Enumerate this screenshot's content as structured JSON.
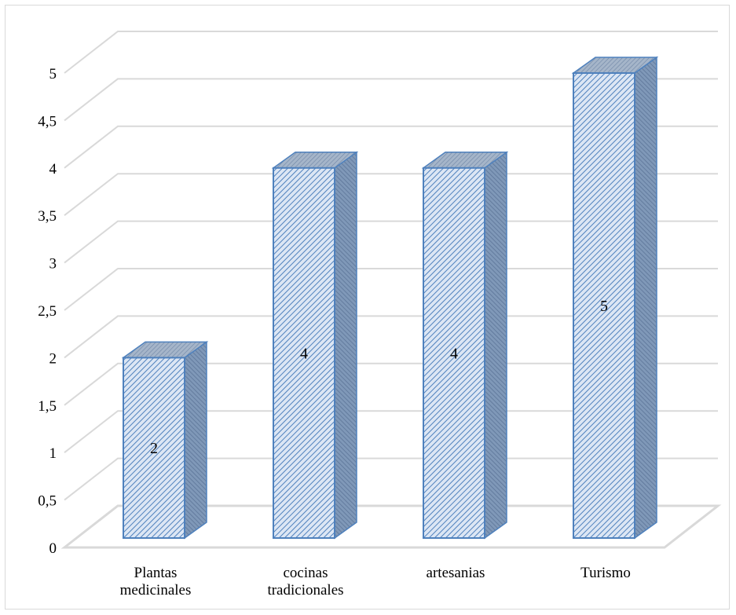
{
  "chart_data": {
    "type": "bar",
    "style": "3d-column",
    "categories": [
      [
        "Plantas",
        "medicinales"
      ],
      [
        "cocinas",
        "tradicionales"
      ],
      [
        "artesanias"
      ],
      [
        "Turismo"
      ]
    ],
    "values": [
      2,
      4,
      4,
      5
    ],
    "data_labels": [
      "2",
      "4",
      "4",
      "5"
    ],
    "y_ticks": [
      "0",
      "0,5",
      "1",
      "1,5",
      "2",
      "2,5",
      "3",
      "3,5",
      "4",
      "4,5",
      "5"
    ],
    "ylim": [
      0,
      5
    ],
    "y_tick_step": 0.5,
    "grid": true,
    "legend": "none",
    "title": "",
    "xlabel": "",
    "ylabel": "",
    "colors": {
      "bar_front": "#dce6f4",
      "bar_hatch": "#4f81bd",
      "bar_side": "#7f98b8",
      "bar_top": "#a5b5c9",
      "bar_edge": "#4f81bd",
      "gridline": "#d9d9d9",
      "floor": "#d9d9d9"
    }
  }
}
